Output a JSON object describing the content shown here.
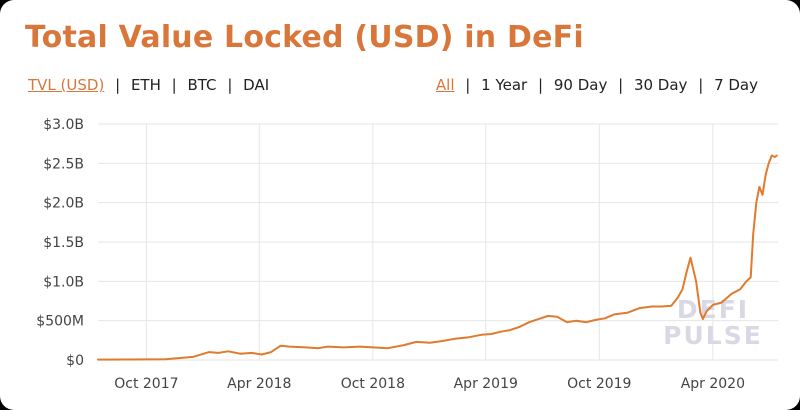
{
  "header": {
    "title": "Total Value Locked (USD) in DeFi"
  },
  "metric_toggles": [
    {
      "label": "TVL (USD)",
      "active": true
    },
    {
      "label": "ETH",
      "active": false
    },
    {
      "label": "BTC",
      "active": false
    },
    {
      "label": "DAI",
      "active": false
    }
  ],
  "range_toggles": [
    {
      "label": "All",
      "active": true
    },
    {
      "label": "1 Year",
      "active": false
    },
    {
      "label": "90 Day",
      "active": false
    },
    {
      "label": "30 Day",
      "active": false
    },
    {
      "label": "7 Day",
      "active": false
    }
  ],
  "watermark": {
    "line1": "DEFI",
    "line2": "PULSE"
  },
  "colors": {
    "accent": "#d9773b",
    "line": "#e07a2e",
    "grid": "#e6e6e6"
  },
  "chart_data": {
    "type": "line",
    "title": "Total Value Locked (USD) in DeFi",
    "xlabel": "",
    "ylabel": "",
    "grid": true,
    "x_ticks": [
      "Oct 2017",
      "Apr 2018",
      "Oct 2018",
      "Apr 2019",
      "Oct 2019",
      "Apr 2020"
    ],
    "y_ticks": [
      "$0",
      "$500M",
      "$1.0B",
      "$1.5B",
      "$2.0B",
      "$2.5B",
      "$3.0B"
    ],
    "xlim": [
      "2017-07-15",
      "2020-07-15"
    ],
    "ylim": [
      0,
      3000000000
    ],
    "series": [
      {
        "name": "",
        "x": [
          "2017-07-15",
          "2017-09-01",
          "2017-11-01",
          "2017-12-15",
          "2018-01-10",
          "2018-01-25",
          "2018-02-10",
          "2018-03-01",
          "2018-03-20",
          "2018-04-05",
          "2018-04-20",
          "2018-05-05",
          "2018-05-20",
          "2018-06-15",
          "2018-07-05",
          "2018-07-20",
          "2018-08-15",
          "2018-09-10",
          "2018-10-01",
          "2018-10-25",
          "2018-11-20",
          "2018-12-10",
          "2019-01-01",
          "2019-01-20",
          "2019-02-10",
          "2019-03-05",
          "2019-03-25",
          "2019-04-10",
          "2019-04-25",
          "2019-05-10",
          "2019-05-25",
          "2019-06-10",
          "2019-06-25",
          "2019-07-10",
          "2019-07-25",
          "2019-08-10",
          "2019-08-25",
          "2019-09-10",
          "2019-09-25",
          "2019-10-10",
          "2019-10-25",
          "2019-11-15",
          "2019-12-05",
          "2019-12-25",
          "2020-01-10",
          "2020-01-25",
          "2020-02-05",
          "2020-02-12",
          "2020-02-18",
          "2020-02-25",
          "2020-03-05",
          "2020-03-12",
          "2020-03-16",
          "2020-03-22",
          "2020-04-01",
          "2020-04-15",
          "2020-05-01",
          "2020-05-15",
          "2020-05-25",
          "2020-06-01",
          "2020-06-05",
          "2020-06-10",
          "2020-06-15",
          "2020-06-20",
          "2020-06-25",
          "2020-06-30",
          "2020-07-05",
          "2020-07-10",
          "2020-07-13"
        ],
        "values": [
          5000000,
          6000000,
          10000000,
          40000000,
          100000000,
          90000000,
          110000000,
          80000000,
          90000000,
          70000000,
          100000000,
          180000000,
          170000000,
          160000000,
          150000000,
          170000000,
          160000000,
          170000000,
          160000000,
          150000000,
          190000000,
          230000000,
          220000000,
          240000000,
          270000000,
          290000000,
          320000000,
          330000000,
          360000000,
          380000000,
          420000000,
          480000000,
          520000000,
          560000000,
          550000000,
          480000000,
          500000000,
          480000000,
          510000000,
          530000000,
          580000000,
          600000000,
          660000000,
          680000000,
          680000000,
          690000000,
          800000000,
          900000000,
          1100000000,
          1300000000,
          1000000000,
          600000000,
          520000000,
          620000000,
          700000000,
          730000000,
          840000000,
          900000000,
          1000000000,
          1050000000,
          1600000000,
          2000000000,
          2200000000,
          2100000000,
          2350000000,
          2500000000,
          2600000000,
          2580000000,
          2600000000
        ]
      }
    ]
  }
}
